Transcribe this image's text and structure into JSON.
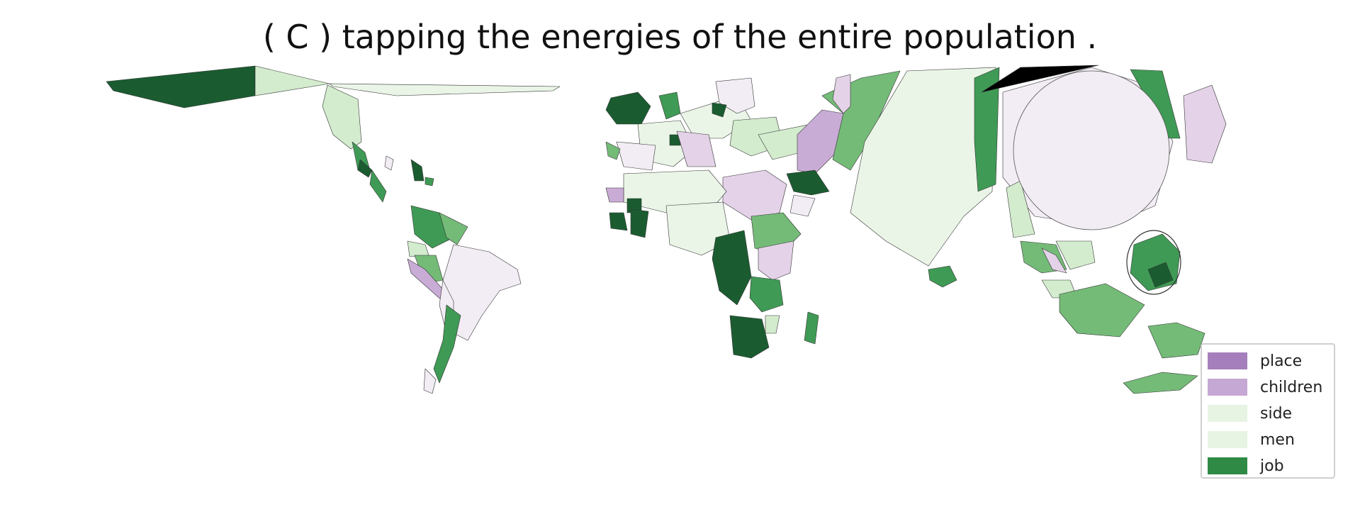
{
  "title": "( C ) tapping the energies of the entire population .",
  "legend": {
    "items": [
      {
        "label": "place",
        "color": "#a57fbb"
      },
      {
        "label": "children",
        "color": "#c5a8d3"
      },
      {
        "label": "side",
        "color": "#e8f4e3"
      },
      {
        "label": "men",
        "color": "#e8f4e3"
      },
      {
        "label": "job",
        "color": "#2f8a45"
      }
    ]
  },
  "palette": {
    "dark_green": "#1a5c30",
    "green": "#3f9a55",
    "mid_green": "#74bb78",
    "light_green": "#d3ecce",
    "pale_green": "#eaf5e7",
    "pale_purple": "#f2edf4",
    "light_purple": "#e4d2e8",
    "purple": "#c9acd6",
    "black": "#000000"
  }
}
